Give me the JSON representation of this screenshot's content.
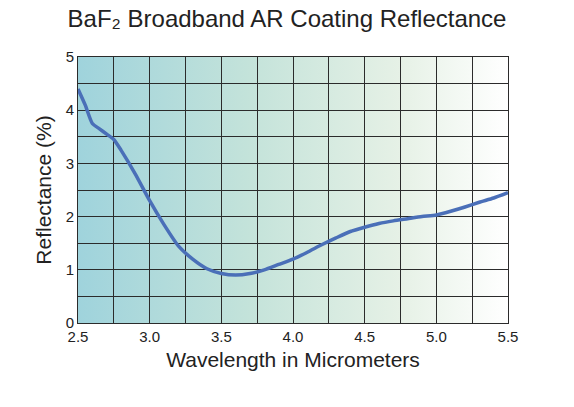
{
  "chart_data": {
    "type": "line",
    "title": "BaF₂ Broadband AR Coating Reflectance",
    "x_label": "Wavelength in Micrometers",
    "y_label": "Reflectance (%)",
    "x": [
      2.5,
      2.55,
      2.6,
      2.65,
      2.7,
      2.75,
      2.8,
      2.9,
      3.0,
      3.1,
      3.2,
      3.3,
      3.4,
      3.5,
      3.6,
      3.7,
      3.8,
      3.9,
      4.0,
      4.1,
      4.2,
      4.3,
      4.4,
      4.5,
      4.6,
      4.7,
      4.8,
      4.9,
      5.0,
      5.1,
      5.2,
      5.3,
      5.4,
      5.5
    ],
    "values": [
      4.4,
      4.1,
      3.75,
      3.65,
      3.55,
      3.45,
      3.25,
      2.8,
      2.3,
      1.85,
      1.45,
      1.2,
      1.02,
      0.93,
      0.9,
      0.93,
      1.0,
      1.1,
      1.2,
      1.33,
      1.47,
      1.6,
      1.72,
      1.8,
      1.87,
      1.92,
      1.96,
      2.0,
      2.03,
      2.1,
      2.18,
      2.27,
      2.35,
      2.45
    ],
    "color": "#4a6fb8",
    "line_style": "solid",
    "xlim": [
      2.5,
      5.5
    ],
    "xticks": [
      2.5,
      {
        "value": 3,
        "label": "3.0"
      },
      3.5,
      {
        "value": 4,
        "label": "4.0"
      },
      4.5,
      {
        "value": 5,
        "label": "5.0"
      },
      5.5
    ],
    "ylim": [
      0,
      5
    ],
    "yticks": [
      0,
      1,
      2,
      3,
      4,
      5
    ],
    "grid": true
  }
}
